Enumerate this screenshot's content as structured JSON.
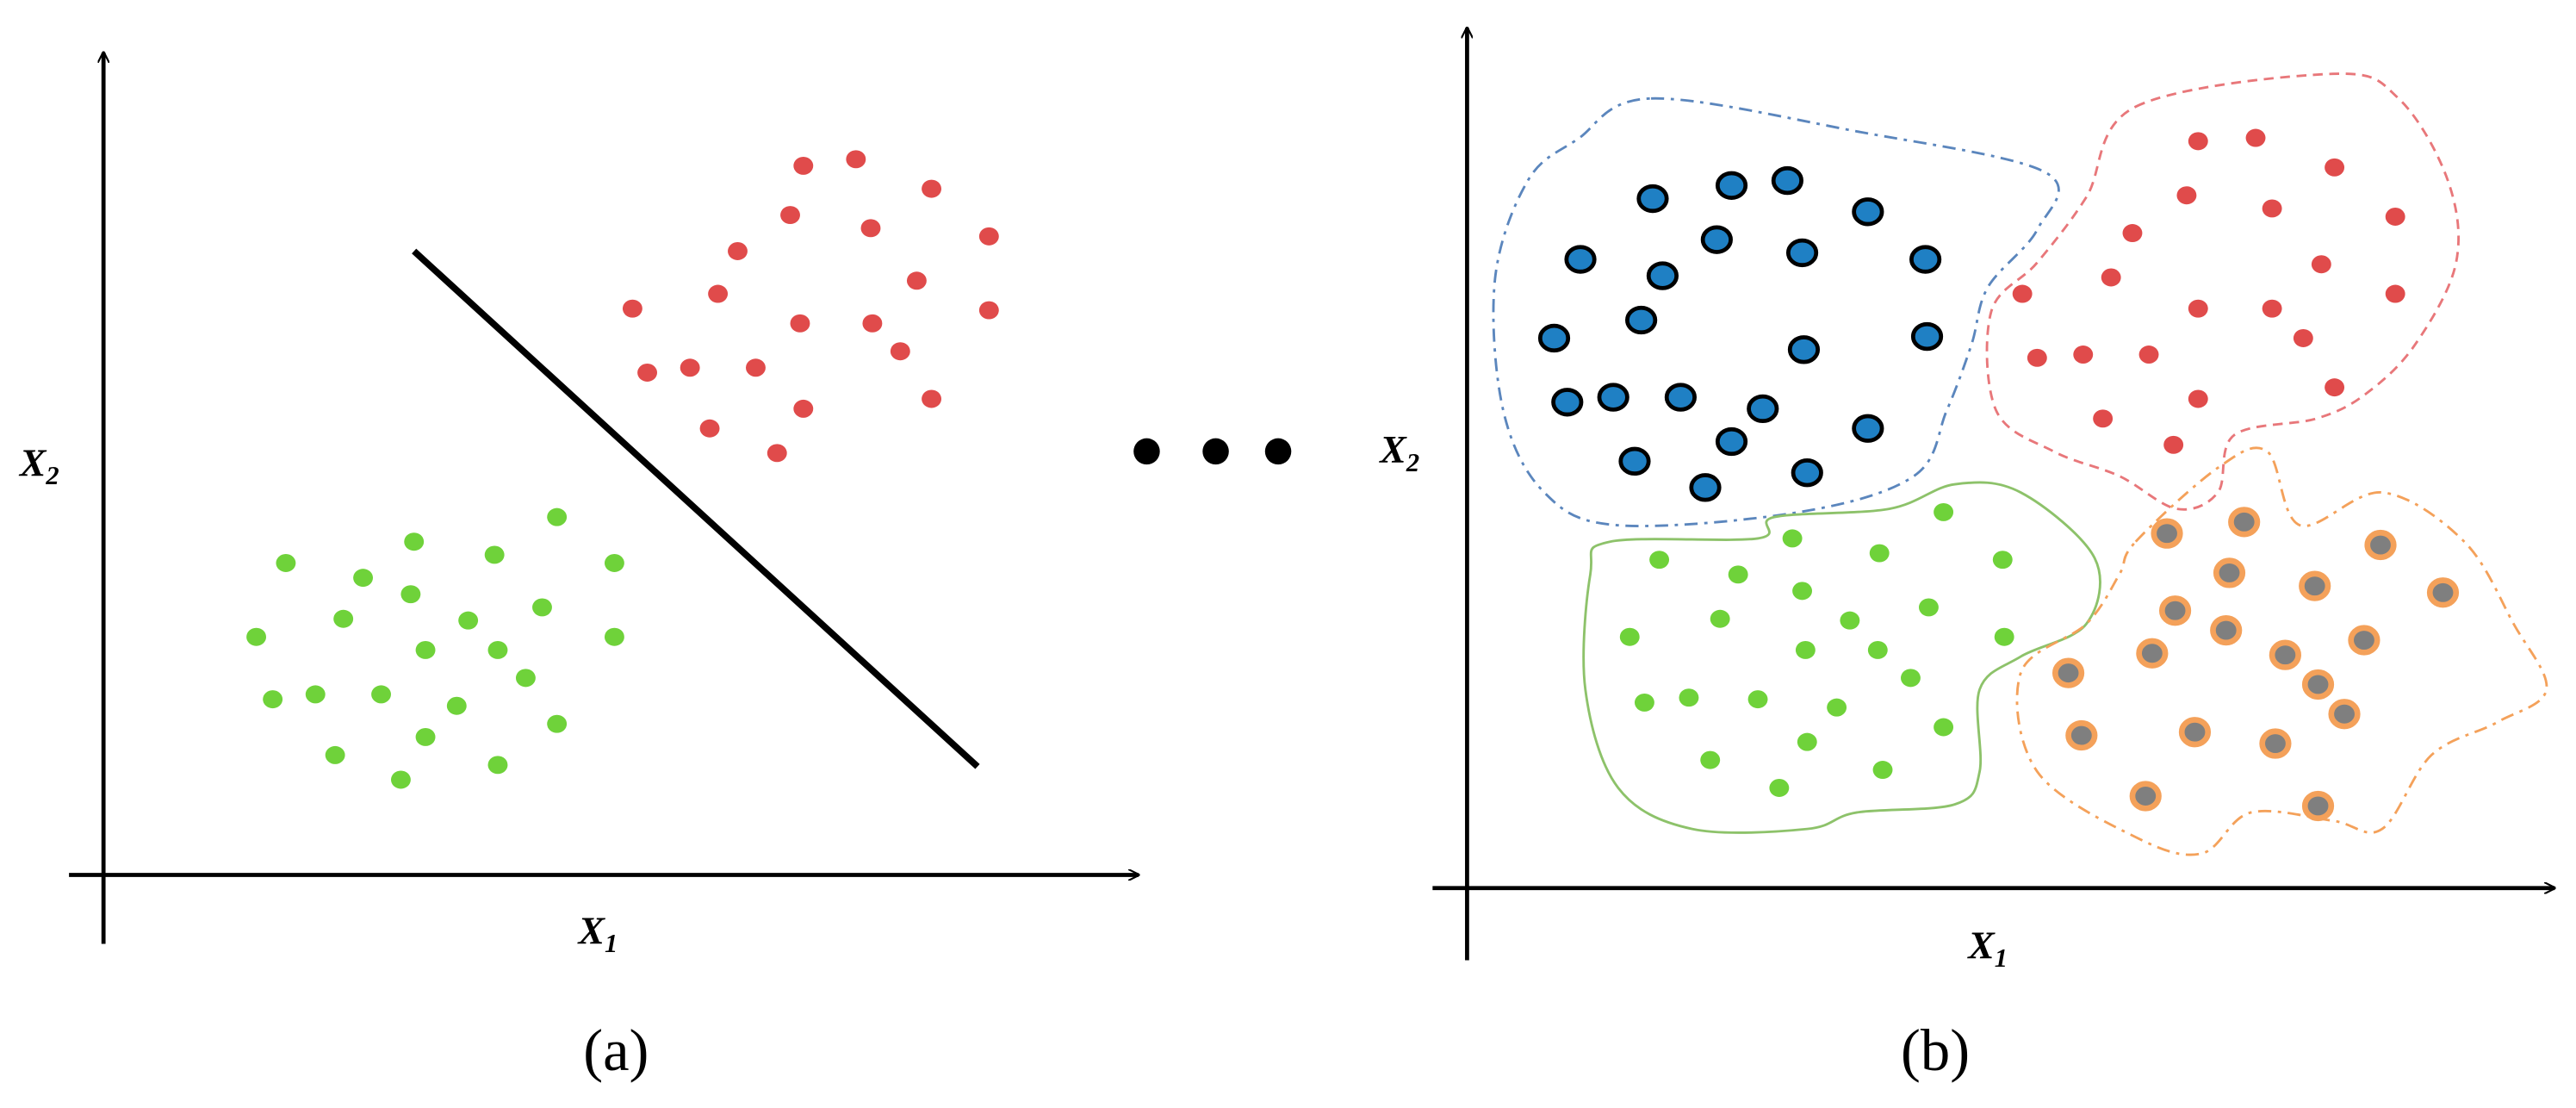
{
  "panels": [
    {
      "label": "(a)",
      "x_axis": {
        "symbol": "X",
        "subscript": "1"
      },
      "y_axis": {
        "symbol": "X",
        "subscript": "2"
      }
    },
    {
      "label": "(b)",
      "x_axis": {
        "symbol": "X",
        "subscript": "1"
      },
      "y_axis": {
        "symbol": "X",
        "subscript": "2"
      }
    }
  ]
}
